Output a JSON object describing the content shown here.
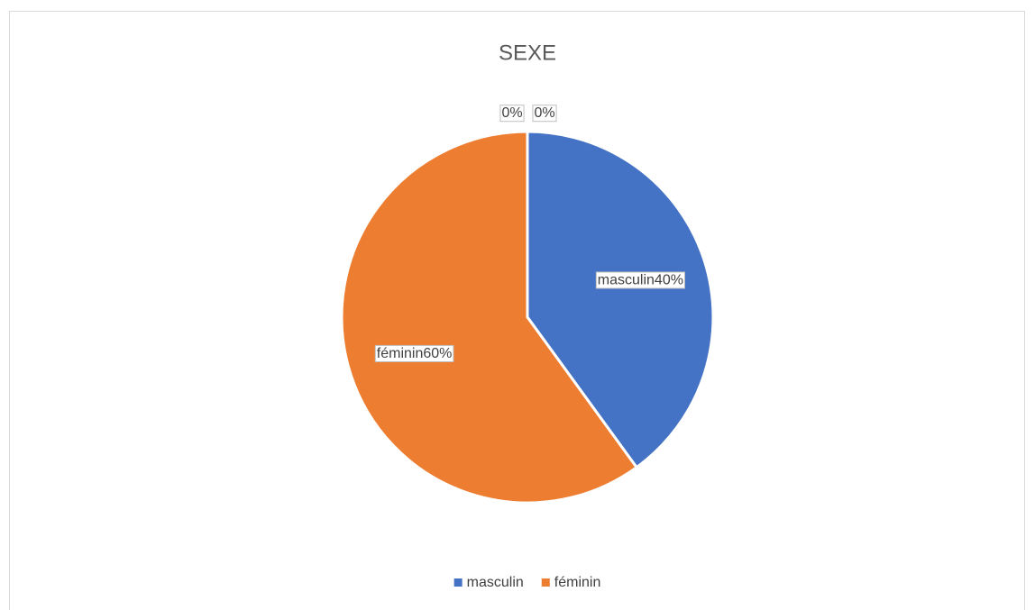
{
  "chart_data": {
    "type": "pie",
    "title": "SEXE",
    "categories": [
      "masculin",
      "féminin",
      null,
      null
    ],
    "values": [
      40,
      60,
      0,
      0
    ],
    "value_labels": [
      "masculin40%",
      "féminin60%",
      "0%",
      "0%"
    ],
    "colors": [
      "#4472c4",
      "#ed7d31",
      "#a5a5a5",
      "#ffc000"
    ],
    "legend": "bottom"
  }
}
